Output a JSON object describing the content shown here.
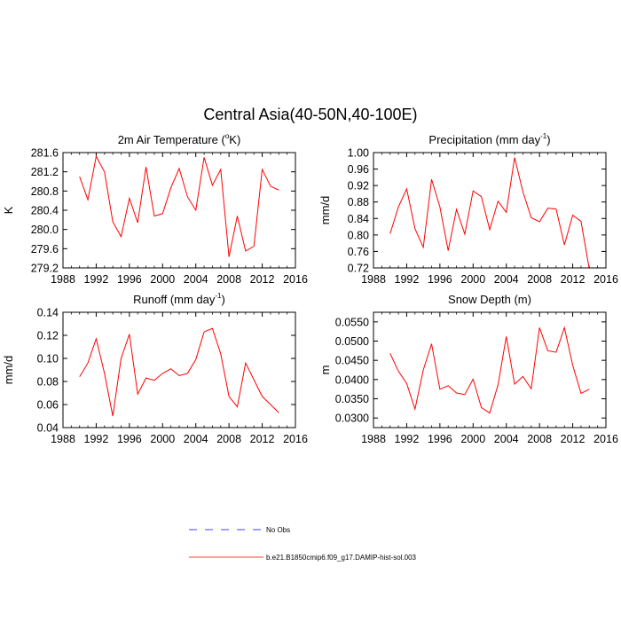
{
  "title": "Central Asia(40-50N,40-100E)",
  "legend": [
    {
      "label": "No Obs",
      "color": "#0000ff",
      "style": "dashed"
    },
    {
      "label": "b.e21.B1850cmip6.f09_g17.DAMIP-hist-sol.003",
      "color": "#ff0000",
      "style": "solid"
    }
  ],
  "chart_data": [
    {
      "type": "line",
      "title_parts": [
        "2m Air Temperature (",
        "o",
        "K)"
      ],
      "ylabel": "K",
      "xlim": [
        1988,
        2016
      ],
      "ylim": [
        279.2,
        281.6
      ],
      "xticks": [
        1988,
        1992,
        1996,
        2000,
        2004,
        2008,
        2012,
        2016
      ],
      "yticks": [
        "279.2",
        "279.6",
        "280.0",
        "280.4",
        "280.8",
        "281.2",
        "281.6"
      ],
      "series": [
        {
          "color": "#ff0000",
          "x": [
            1990,
            1991,
            1992,
            1993,
            1994,
            1995,
            1996,
            1997,
            1998,
            1999,
            2000,
            2001,
            2002,
            2003,
            2004,
            2005,
            2006,
            2007,
            2008,
            2009,
            2010,
            2011,
            2012,
            2013,
            2014
          ],
          "values": [
            281.1,
            280.62,
            281.52,
            281.2,
            280.16,
            279.85,
            280.65,
            280.14,
            281.3,
            280.28,
            280.33,
            280.87,
            281.27,
            280.68,
            280.4,
            281.5,
            280.92,
            281.25,
            279.43,
            280.28,
            279.55,
            279.65,
            281.25,
            280.9,
            280.82
          ]
        }
      ]
    },
    {
      "type": "line",
      "title_parts": [
        "Precipitation (mm day",
        "-1",
        ")"
      ],
      "ylabel": "mm/d",
      "xlim": [
        1988,
        2016
      ],
      "ylim": [
        0.72,
        1.0
      ],
      "xticks": [
        1988,
        1992,
        1996,
        2000,
        2004,
        2008,
        2012,
        2016
      ],
      "yticks": [
        "0.72",
        "0.76",
        "0.80",
        "0.84",
        "0.88",
        "0.92",
        "0.96",
        "1.00"
      ],
      "series": [
        {
          "color": "#ff0000",
          "x": [
            1990,
            1991,
            1992,
            1993,
            1994,
            1995,
            1996,
            1997,
            1998,
            1999,
            2000,
            2001,
            2002,
            2003,
            2004,
            2005,
            2006,
            2007,
            2008,
            2009,
            2010,
            2011,
            2012,
            2013,
            2014
          ],
          "values": [
            0.803,
            0.868,
            0.912,
            0.815,
            0.77,
            0.935,
            0.868,
            0.762,
            0.862,
            0.802,
            0.907,
            0.893,
            0.813,
            0.882,
            0.855,
            0.988,
            0.905,
            0.842,
            0.832,
            0.865,
            0.863,
            0.776,
            0.848,
            0.833,
            0.717
          ]
        }
      ]
    },
    {
      "type": "line",
      "title_parts": [
        "Runoff (mm day",
        "-1",
        ")"
      ],
      "ylabel": "mm/d",
      "xlim": [
        1988,
        2016
      ],
      "ylim": [
        0.04,
        0.14
      ],
      "xticks": [
        1988,
        1992,
        1996,
        2000,
        2004,
        2008,
        2012,
        2016
      ],
      "yticks": [
        "0.04",
        "0.06",
        "0.08",
        "0.10",
        "0.12",
        "0.14"
      ],
      "series": [
        {
          "color": "#ff0000",
          "x": [
            1990,
            1991,
            1992,
            1993,
            1994,
            1995,
            1996,
            1997,
            1998,
            1999,
            2000,
            2001,
            2002,
            2003,
            2004,
            2005,
            2006,
            2007,
            2008,
            2009,
            2010,
            2012,
            2014
          ],
          "values": [
            0.084,
            0.096,
            0.117,
            0.087,
            0.05,
            0.1,
            0.121,
            0.069,
            0.083,
            0.081,
            0.087,
            0.091,
            0.085,
            0.087,
            0.099,
            0.123,
            0.126,
            0.104,
            0.067,
            0.058,
            0.096,
            0.067,
            0.053
          ]
        }
      ]
    },
    {
      "type": "line",
      "title_parts": [
        "Snow Depth (m)"
      ],
      "ylabel": "m",
      "xlim": [
        1988,
        2016
      ],
      "ylim": [
        0.0275,
        0.0575
      ],
      "xticks": [
        1988,
        1992,
        1996,
        2000,
        2004,
        2008,
        2012,
        2016
      ],
      "yticks": [
        "0.0300",
        "0.0350",
        "0.0400",
        "0.0450",
        "0.0500",
        "0.0550"
      ],
      "ytick_values": [
        0.03,
        0.035,
        0.04,
        0.045,
        0.05,
        0.055
      ],
      "series": [
        {
          "color": "#ff0000",
          "x": [
            1990,
            1991,
            1992,
            1993,
            1994,
            1995,
            1996,
            1997,
            1998,
            1999,
            2000,
            2001,
            2002,
            2003,
            2004,
            2005,
            2006,
            2007,
            2008,
            2009,
            2010,
            2011,
            2012,
            2013,
            2014
          ],
          "values": [
            0.0468,
            0.0422,
            0.039,
            0.0323,
            0.0425,
            0.0493,
            0.0375,
            0.0384,
            0.0365,
            0.0361,
            0.0401,
            0.0327,
            0.0313,
            0.0386,
            0.0512,
            0.0388,
            0.0408,
            0.0376,
            0.0535,
            0.0475,
            0.0471,
            0.0535,
            0.0437,
            0.0364,
            0.0375
          ]
        }
      ]
    }
  ]
}
